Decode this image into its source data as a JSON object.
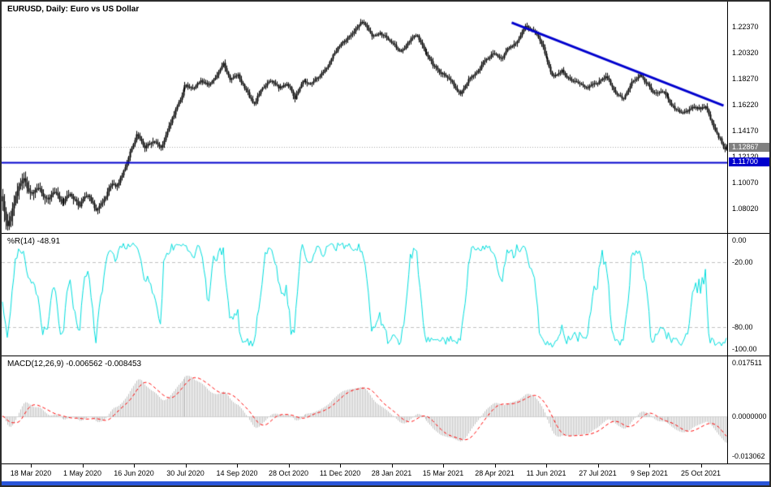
{
  "window": {
    "border_color": "#2b2b2b",
    "background": "#ffffff",
    "bottom_bar_color": "#2a55d8"
  },
  "main": {
    "title": "EURUSD, Daily: Euro vs US Dollar",
    "y_ticks": [
      "1.22370",
      "1.20320",
      "1.18270",
      "1.16220",
      "1.14170",
      "1.12120",
      "1.10070",
      "1.08020"
    ],
    "current_price_label": "1.12867",
    "current_price_tag_color": "#808080",
    "hline_label": "1.11700",
    "hline_tag_color": "#0000cd"
  },
  "wpr": {
    "title": "%R(14) -48.91",
    "y_ticks": [
      "0.00",
      "-20.00",
      "-80.00",
      "-100.00"
    ]
  },
  "macd": {
    "title": "MACD(12,26,9) -0.006562 -0.008453",
    "y_ticks": [
      "0.017511",
      "0.0000000",
      "-0.013062"
    ]
  },
  "x_axis": {
    "labels": [
      "18 Mar 2020",
      "1 May 2020",
      "16 Jun 2020",
      "30 Jul 2020",
      "14 Sep 2020",
      "28 Oct 2020",
      "11 Dec 2020",
      "28 Jan 2021",
      "15 Mar 2021",
      "28 Apr 2021",
      "11 Jun 2021",
      "27 Jul 2021",
      "9 Sep 2021",
      "25 Oct 2021"
    ],
    "first_frac": 0.0403,
    "step_frac": 0.07103
  },
  "chart_data": [
    {
      "type": "candlestick",
      "symbol": "EURUSD",
      "timeframe": "Daily",
      "description": "Euro vs US Dollar",
      "bars": 450,
      "ylim": [
        1.061,
        1.2436
      ],
      "y_tick_values": [
        1.2237,
        1.2032,
        1.1827,
        1.1622,
        1.1417,
        1.1212,
        1.1007,
        1.0802
      ],
      "last_close": 1.12867,
      "bar_color": "#000000",
      "bid_line": {
        "price": 1.12867,
        "color": "#a8a8a8",
        "style": "dotted"
      },
      "hline": {
        "price": 1.117,
        "color": "#0000cd",
        "width": 2
      },
      "trendline": {
        "x1_frac": 0.703,
        "price1": 1.227,
        "x2_frac": 0.995,
        "price2": 1.1615,
        "color": "#0000cd",
        "width": 3
      },
      "close_anchors": [
        [
          0.0,
          1.086
        ],
        [
          0.003,
          1.075
        ],
        [
          0.006,
          1.066
        ],
        [
          0.01,
          1.073
        ],
        [
          0.014,
          1.082
        ],
        [
          0.018,
          1.09
        ],
        [
          0.023,
          1.098
        ],
        [
          0.028,
          1.105
        ],
        [
          0.032,
          1.099
        ],
        [
          0.036,
          1.093
        ],
        [
          0.04,
          1.091
        ],
        [
          0.045,
          1.096
        ],
        [
          0.05,
          1.098
        ],
        [
          0.056,
          1.089
        ],
        [
          0.062,
          1.086
        ],
        [
          0.068,
          1.091
        ],
        [
          0.073,
          1.093
        ],
        [
          0.079,
          1.087
        ],
        [
          0.084,
          1.085
        ],
        [
          0.09,
          1.09
        ],
        [
          0.095,
          1.091
        ],
        [
          0.101,
          1.086
        ],
        [
          0.106,
          1.082
        ],
        [
          0.112,
          1.088
        ],
        [
          0.118,
          1.092
        ],
        [
          0.123,
          1.086
        ],
        [
          0.129,
          1.079
        ],
        [
          0.134,
          1.083
        ],
        [
          0.14,
          1.087
        ],
        [
          0.146,
          1.095
        ],
        [
          0.151,
          1.1
        ],
        [
          0.157,
          1.097
        ],
        [
          0.162,
          1.104
        ],
        [
          0.168,
          1.112
        ],
        [
          0.174,
          1.121
        ],
        [
          0.179,
          1.13
        ],
        [
          0.185,
          1.139
        ],
        [
          0.19,
          1.134
        ],
        [
          0.196,
          1.127
        ],
        [
          0.202,
          1.131
        ],
        [
          0.207,
          1.134
        ],
        [
          0.213,
          1.13
        ],
        [
          0.218,
          1.128
        ],
        [
          0.224,
          1.136
        ],
        [
          0.229,
          1.145
        ],
        [
          0.235,
          1.153
        ],
        [
          0.24,
          1.16
        ],
        [
          0.245,
          1.167
        ],
        [
          0.249,
          1.173
        ],
        [
          0.253,
          1.178
        ],
        [
          0.258,
          1.176
        ],
        [
          0.263,
          1.174
        ],
        [
          0.269,
          1.178
        ],
        [
          0.274,
          1.182
        ],
        [
          0.28,
          1.18
        ],
        [
          0.286,
          1.178
        ],
        [
          0.291,
          1.182
        ],
        [
          0.297,
          1.187
        ],
        [
          0.302,
          1.193
        ],
        [
          0.305,
          1.196
        ],
        [
          0.309,
          1.189
        ],
        [
          0.314,
          1.182
        ],
        [
          0.32,
          1.184
        ],
        [
          0.325,
          1.186
        ],
        [
          0.33,
          1.18
        ],
        [
          0.336,
          1.174
        ],
        [
          0.341,
          1.168
        ],
        [
          0.347,
          1.163
        ],
        [
          0.352,
          1.169
        ],
        [
          0.358,
          1.175
        ],
        [
          0.364,
          1.179
        ],
        [
          0.37,
          1.182
        ],
        [
          0.375,
          1.178
        ],
        [
          0.381,
          1.175
        ],
        [
          0.387,
          1.177
        ],
        [
          0.393,
          1.179
        ],
        [
          0.399,
          1.173
        ],
        [
          0.403,
          1.167
        ],
        [
          0.409,
          1.175
        ],
        [
          0.414,
          1.182
        ],
        [
          0.42,
          1.18
        ],
        [
          0.426,
          1.179
        ],
        [
          0.431,
          1.182
        ],
        [
          0.437,
          1.185
        ],
        [
          0.442,
          1.188
        ],
        [
          0.448,
          1.192
        ],
        [
          0.454,
          1.198
        ],
        [
          0.459,
          1.204
        ],
        [
          0.463,
          1.207
        ],
        [
          0.467,
          1.209
        ],
        [
          0.472,
          1.212
        ],
        [
          0.476,
          1.214
        ],
        [
          0.481,
          1.217
        ],
        [
          0.487,
          1.221
        ],
        [
          0.492,
          1.226
        ],
        [
          0.498,
          1.2285
        ],
        [
          0.504,
          1.222
        ],
        [
          0.51,
          1.215
        ],
        [
          0.515,
          1.217
        ],
        [
          0.521,
          1.2195
        ],
        [
          0.527,
          1.216
        ],
        [
          0.533,
          1.2135
        ],
        [
          0.538,
          1.211
        ],
        [
          0.543,
          1.207
        ],
        [
          0.549,
          1.204
        ],
        [
          0.555,
          1.208
        ],
        [
          0.56,
          1.212
        ],
        [
          0.566,
          1.215
        ],
        [
          0.571,
          1.218
        ],
        [
          0.577,
          1.212
        ],
        [
          0.582,
          1.206
        ],
        [
          0.588,
          1.2
        ],
        [
          0.594,
          1.194
        ],
        [
          0.6,
          1.19
        ],
        [
          0.609,
          1.186
        ],
        [
          0.615,
          1.182
        ],
        [
          0.621,
          1.179
        ],
        [
          0.627,
          1.1745
        ],
        [
          0.633,
          1.172
        ],
        [
          0.638,
          1.177
        ],
        [
          0.644,
          1.182
        ],
        [
          0.65,
          1.185
        ],
        [
          0.655,
          1.188
        ],
        [
          0.661,
          1.193
        ],
        [
          0.666,
          1.198
        ],
        [
          0.673,
          1.201
        ],
        [
          0.68,
          1.203
        ],
        [
          0.684,
          1.201
        ],
        [
          0.689,
          1.199
        ],
        [
          0.695,
          1.204
        ],
        [
          0.7,
          1.208
        ],
        [
          0.705,
          1.21
        ],
        [
          0.711,
          1.2125
        ],
        [
          0.716,
          1.219
        ],
        [
          0.722,
          1.2235
        ],
        [
          0.727,
          1.2215
        ],
        [
          0.733,
          1.2205
        ],
        [
          0.737,
          1.218
        ],
        [
          0.741,
          1.2145
        ],
        [
          0.746,
          1.207
        ],
        [
          0.751,
          1.199
        ],
        [
          0.756,
          1.191
        ],
        [
          0.761,
          1.1845
        ],
        [
          0.767,
          1.187
        ],
        [
          0.773,
          1.189
        ],
        [
          0.778,
          1.1855
        ],
        [
          0.784,
          1.182
        ],
        [
          0.79,
          1.18
        ],
        [
          0.795,
          1.179
        ],
        [
          0.801,
          1.177
        ],
        [
          0.806,
          1.175
        ],
        [
          0.814,
          1.178
        ],
        [
          0.822,
          1.18
        ],
        [
          0.828,
          1.183
        ],
        [
          0.834,
          1.185
        ],
        [
          0.84,
          1.178
        ],
        [
          0.846,
          1.172
        ],
        [
          0.852,
          1.169
        ],
        [
          0.857,
          1.167
        ],
        [
          0.863,
          1.173
        ],
        [
          0.868,
          1.179
        ],
        [
          0.874,
          1.182
        ],
        [
          0.879,
          1.1855
        ],
        [
          0.887,
          1.18
        ],
        [
          0.894,
          1.175
        ],
        [
          0.9,
          1.172
        ],
        [
          0.905,
          1.17
        ],
        [
          0.909,
          1.172
        ],
        [
          0.913,
          1.173
        ],
        [
          0.917,
          1.169
        ],
        [
          0.92,
          1.165
        ],
        [
          0.925,
          1.162
        ],
        [
          0.929,
          1.159
        ],
        [
          0.935,
          1.157
        ],
        [
          0.941,
          1.156
        ],
        [
          0.947,
          1.158
        ],
        [
          0.952,
          1.16
        ],
        [
          0.958,
          1.159
        ],
        [
          0.964,
          1.159
        ],
        [
          0.968,
          1.16
        ],
        [
          0.972,
          1.161
        ],
        [
          0.976,
          1.154
        ],
        [
          0.98,
          1.147
        ],
        [
          0.984,
          1.142
        ],
        [
          0.988,
          1.137
        ],
        [
          0.991,
          1.135
        ],
        [
          0.994,
          1.13
        ],
        [
          0.997,
          1.1262
        ],
        [
          1.0,
          1.1287
        ]
      ]
    },
    {
      "type": "line",
      "name": "%R(14)",
      "period": 14,
      "current_value": -48.91,
      "ylim": [
        -100,
        0
      ],
      "levels": [
        -20,
        -80
      ],
      "y_tick_values": [
        0,
        -20,
        -80,
        -100
      ],
      "line_color": "#00dddd",
      "level_color": "#c0c0c0",
      "derived": "williams_percent_r of main candlestick series"
    },
    {
      "type": "macd",
      "name": "MACD(12,26,9)",
      "fast": 12,
      "slow": 26,
      "signal_period": 9,
      "macd_value": -0.006562,
      "signal_value": -0.008453,
      "ylim": [
        -0.0155,
        0.0195
      ],
      "y_tick_values": [
        0.017511,
        0,
        -0.013062
      ],
      "histogram_color": "#c0c0c0",
      "signal_color": "#ff0000",
      "signal_style": "dashed",
      "derived": "macd of main candlestick series closes"
    }
  ]
}
